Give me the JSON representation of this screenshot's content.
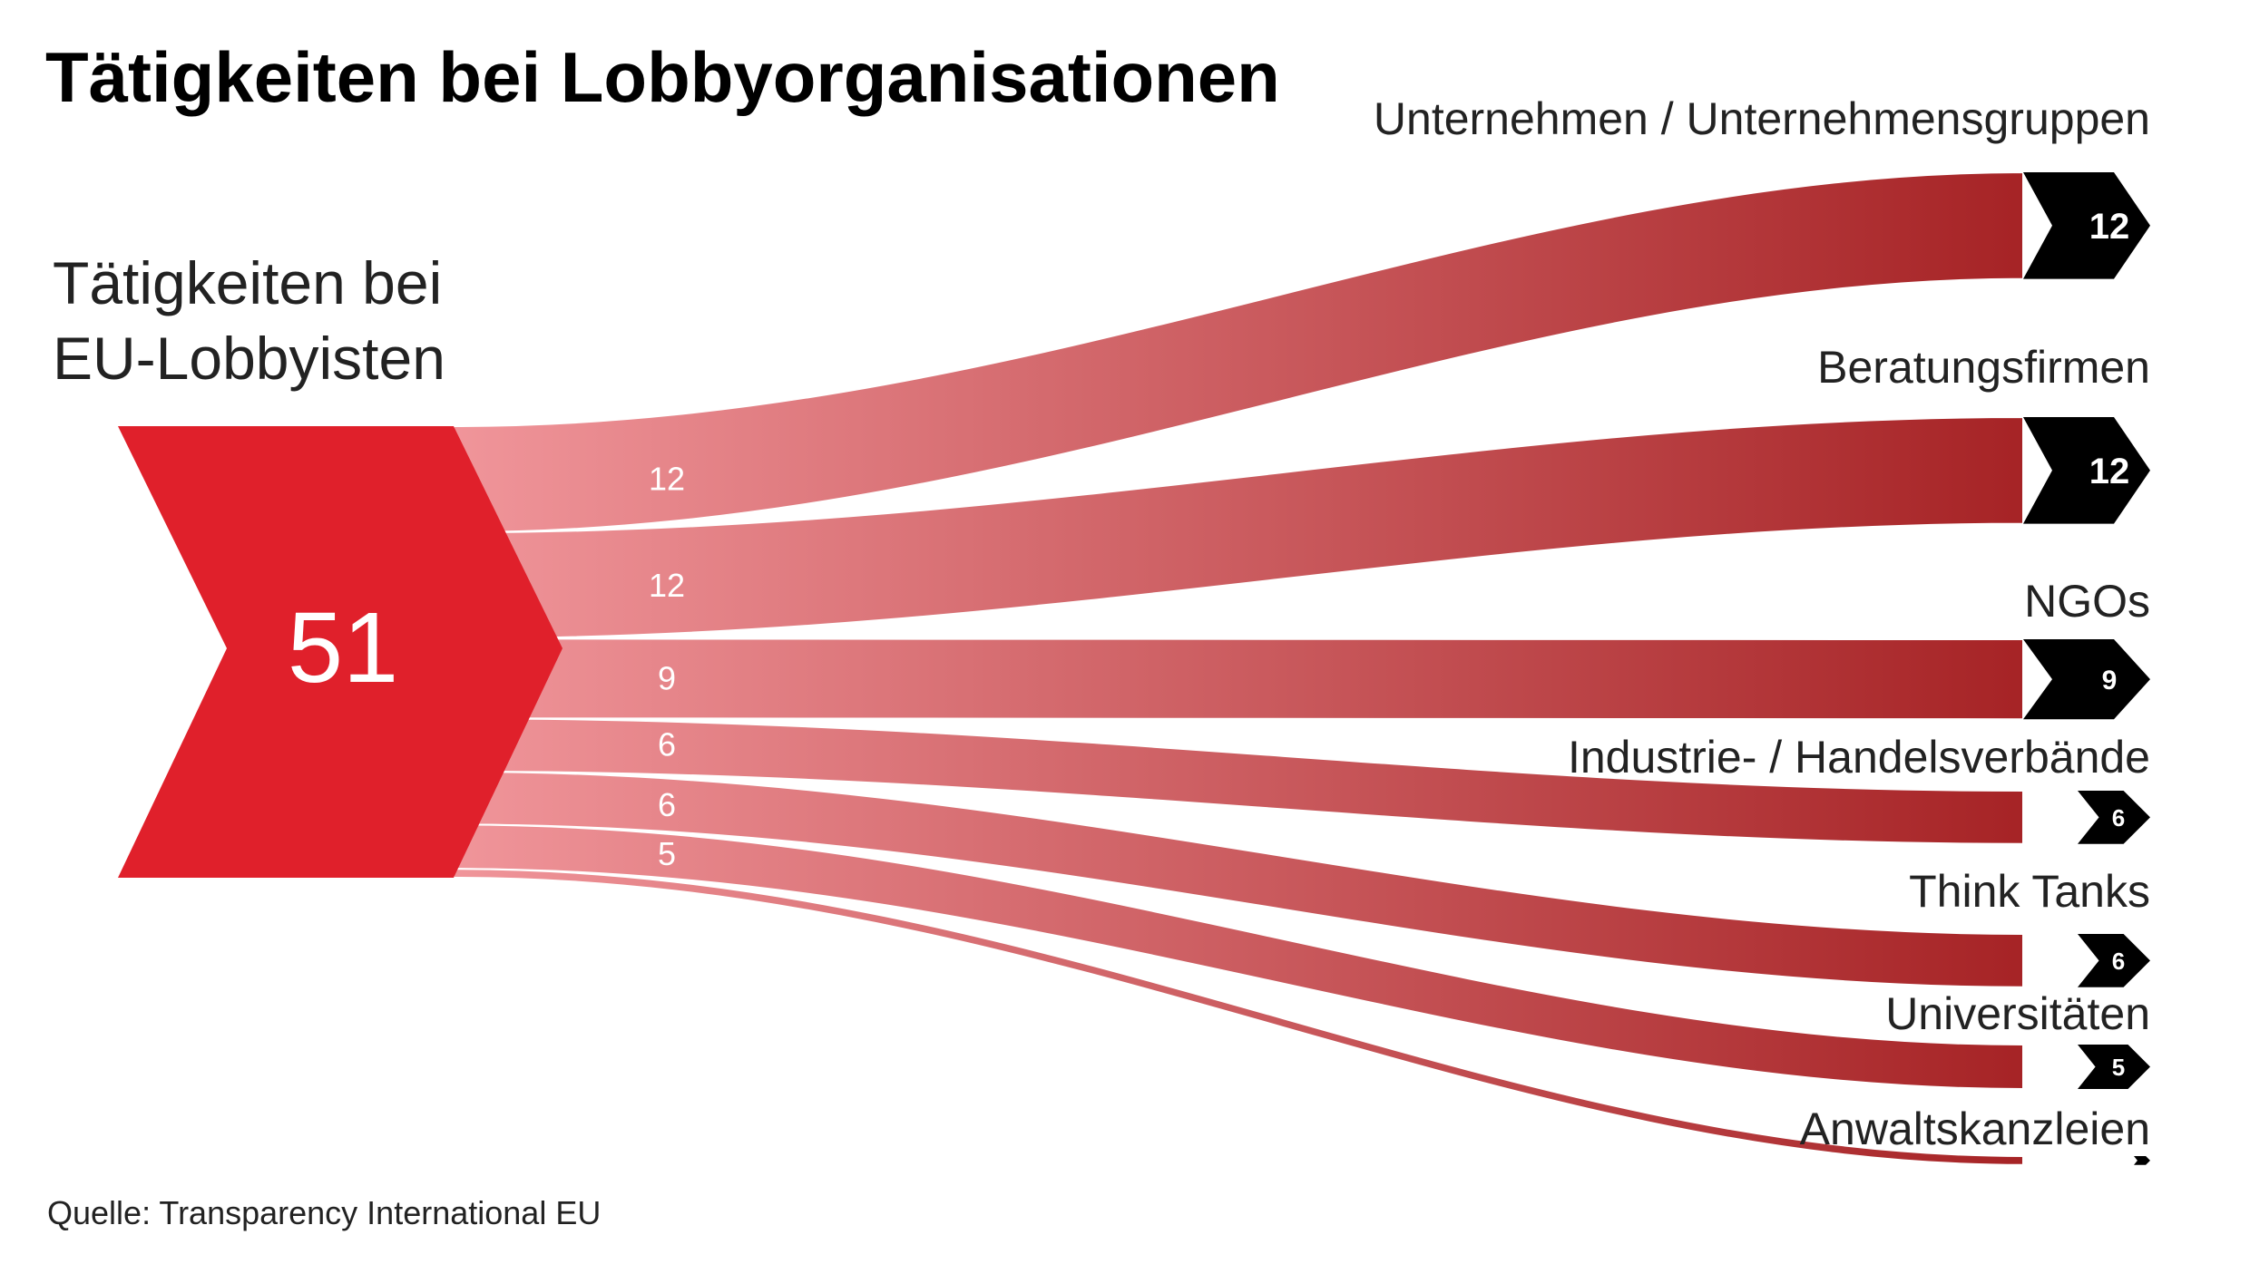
{
  "title": "Tätigkeiten bei Lobbyorganisationen",
  "source_note": "Quelle: Transparency International EU",
  "colors": {
    "source_red": "#e0202b",
    "flow_light": "#f0959a",
    "flow_dark": "#a01a1c",
    "badge": "#000000"
  },
  "chart_data": {
    "type": "sankey",
    "source": {
      "label_lines": [
        "Tätigkeiten bei",
        "EU-Lobbyisten"
      ],
      "value": 51,
      "value_label": "51"
    },
    "flows": [
      {
        "target": "Unternehmen / Unternehmensgruppen",
        "value": 12,
        "value_label": "12"
      },
      {
        "target": "Beratungsfirmen",
        "value": 12,
        "value_label": "12"
      },
      {
        "target": "NGOs",
        "value": 9,
        "value_label": "9"
      },
      {
        "target": "Industrie- / Handelsverbände",
        "value": 6,
        "value_label": "6"
      },
      {
        "target": "Think Tanks",
        "value": 6,
        "value_label": "6"
      },
      {
        "target": "Universitäten",
        "value": 5,
        "value_label": "5"
      },
      {
        "target": "Anwaltskanzleien",
        "value": 1,
        "value_label": "1"
      }
    ]
  }
}
